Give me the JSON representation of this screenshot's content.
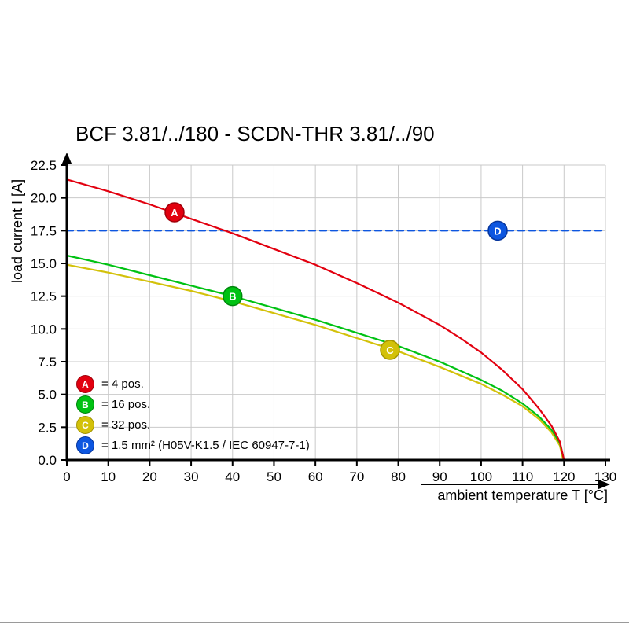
{
  "page": {
    "title": "BCF 3.81/../180 - SCDN-THR 3.81/../90"
  },
  "chart_data": {
    "type": "line",
    "title": "BCF 3.81/../180 - SCDN-THR 3.81/../90",
    "xlabel": "ambient temperature T [°C]",
    "ylabel": "load current I [A]",
    "xlim": [
      0,
      130
    ],
    "ylim": [
      0,
      22.5
    ],
    "grid": true,
    "legend_position": "inside lower-left",
    "x_ticks": [
      0,
      10,
      20,
      30,
      40,
      50,
      60,
      70,
      80,
      90,
      100,
      110,
      120,
      130
    ],
    "x_tick_labels": [
      "0",
      "10",
      "20",
      "30",
      "40",
      "50",
      "60",
      "70",
      "80",
      "90",
      "100",
      "110",
      "120",
      "130"
    ],
    "y_ticks": [
      0,
      2.5,
      5,
      7.5,
      10,
      12.5,
      15,
      17.5,
      20,
      22.5
    ],
    "y_tick_labels": [
      "0.0",
      "2.5",
      "5.0",
      "7.5",
      "10.0",
      "12.5",
      "15.0",
      "17.5",
      "20.0",
      "22.5"
    ],
    "series": [
      {
        "letter": "A",
        "name": "4 pos.",
        "legend_label": "= 4 pos.",
        "color": "#e2000f",
        "edge_color": "#9f000a",
        "style": "solid",
        "marker_at": {
          "x": 26,
          "y": 18.9
        },
        "points": [
          [
            0,
            21.4
          ],
          [
            10,
            20.5
          ],
          [
            20,
            19.5
          ],
          [
            30,
            18.4
          ],
          [
            40,
            17.3
          ],
          [
            50,
            16.1
          ],
          [
            60,
            14.9
          ],
          [
            70,
            13.5
          ],
          [
            80,
            12.0
          ],
          [
            90,
            10.3
          ],
          [
            95,
            9.3
          ],
          [
            100,
            8.2
          ],
          [
            105,
            6.9
          ],
          [
            110,
            5.4
          ],
          [
            114,
            3.9
          ],
          [
            117,
            2.6
          ],
          [
            119,
            1.4
          ],
          [
            120,
            0
          ]
        ]
      },
      {
        "letter": "B",
        "name": "16 pos.",
        "legend_label": "= 16 pos.",
        "color": "#00c213",
        "edge_color": "#00860d",
        "style": "solid",
        "marker_at": {
          "x": 40,
          "y": 12.5
        },
        "points": [
          [
            0,
            15.6
          ],
          [
            10,
            14.9
          ],
          [
            20,
            14.1
          ],
          [
            30,
            13.3
          ],
          [
            40,
            12.5
          ],
          [
            50,
            11.6
          ],
          [
            60,
            10.7
          ],
          [
            70,
            9.7
          ],
          [
            80,
            8.7
          ],
          [
            90,
            7.5
          ],
          [
            100,
            6.1
          ],
          [
            105,
            5.3
          ],
          [
            110,
            4.3
          ],
          [
            114,
            3.3
          ],
          [
            117,
            2.3
          ],
          [
            119,
            1.3
          ],
          [
            120,
            0
          ]
        ]
      },
      {
        "letter": "C",
        "name": "32 pos.",
        "legend_label": "= 32 pos.",
        "color": "#d3c10a",
        "edge_color": "#a39400",
        "style": "solid",
        "marker_at": {
          "x": 78,
          "y": 8.4
        },
        "points": [
          [
            0,
            14.9
          ],
          [
            10,
            14.3
          ],
          [
            20,
            13.6
          ],
          [
            30,
            12.9
          ],
          [
            40,
            12.1
          ],
          [
            50,
            11.2
          ],
          [
            60,
            10.3
          ],
          [
            70,
            9.3
          ],
          [
            80,
            8.3
          ],
          [
            90,
            7.1
          ],
          [
            100,
            5.8
          ],
          [
            105,
            5.0
          ],
          [
            110,
            4.1
          ],
          [
            114,
            3.1
          ],
          [
            117,
            2.1
          ],
          [
            119,
            1.1
          ],
          [
            119.8,
            0
          ]
        ]
      },
      {
        "letter": "D",
        "name": "1.5 mm² (H05V-K1.5 / IEC 60947-7-1)",
        "legend_label": "= 1.5 mm² (H05V-K1.5 / IEC 60947-7-1)",
        "color": "#0d56e0",
        "edge_color": "#06359c",
        "style": "dashed",
        "marker_at": {
          "x": 104,
          "y": 17.5
        },
        "points": [
          [
            0,
            17.5
          ],
          [
            130,
            17.5
          ]
        ]
      }
    ]
  }
}
